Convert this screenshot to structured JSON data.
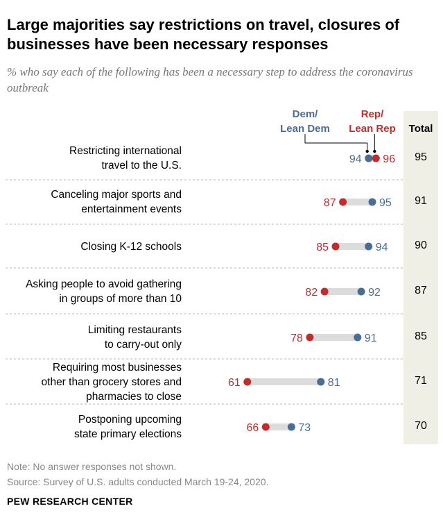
{
  "title": "Large majorities say restrictions on travel, closures of businesses have been necessary responses",
  "subtitle": "% who say each of the following has been a necessary step to address the coronavirus outbreak",
  "headers": {
    "dem_line1": "Dem/",
    "dem_line2": "Lean Dem",
    "rep_line1": "Rep/",
    "rep_line2": "Lean Rep",
    "total": "Total"
  },
  "note": "Note: No answer responses not shown.",
  "source": "Source: Survey of U.S. adults conducted March 19-24, 2020.",
  "brand": "PEW RESEARCH CENTER",
  "colors": {
    "dem": "#4a6d95",
    "rep": "#c22c2c",
    "bar": "#dcdcdc",
    "total_band": "#f0efe6"
  },
  "chart_data": {
    "type": "dot",
    "categories": [
      "Restricting international travel to the U.S.",
      "Canceling major sports and entertainment events",
      "Closing K-12 schools",
      "Asking people to avoid gathering in groups of more than 10",
      "Limiting restaurants to carry-out only",
      "Requiring most businesses other than grocery stores and pharmacies to close",
      "Postponing upcoming state primary elections"
    ],
    "label_lines": [
      [
        "Restricting international",
        "travel to the U.S."
      ],
      [
        "Canceling major sports and",
        "entertainment events"
      ],
      [
        "Closing K-12 schools"
      ],
      [
        "Asking people to avoid gathering",
        "in groups of more than 10"
      ],
      [
        "Limiting restaurants",
        "to carry-out only"
      ],
      [
        "Requiring most businesses",
        "other than grocery stores and",
        "pharmacies to close"
      ],
      [
        "Postponing upcoming",
        "state primary elections"
      ]
    ],
    "series": [
      {
        "name": "Dem/Lean Dem",
        "values": [
          94,
          95,
          94,
          92,
          91,
          81,
          73
        ]
      },
      {
        "name": "Rep/Lean Rep",
        "values": [
          96,
          87,
          85,
          82,
          78,
          61,
          66
        ]
      }
    ],
    "total": [
      95,
      91,
      90,
      87,
      85,
      71,
      70
    ]
  }
}
